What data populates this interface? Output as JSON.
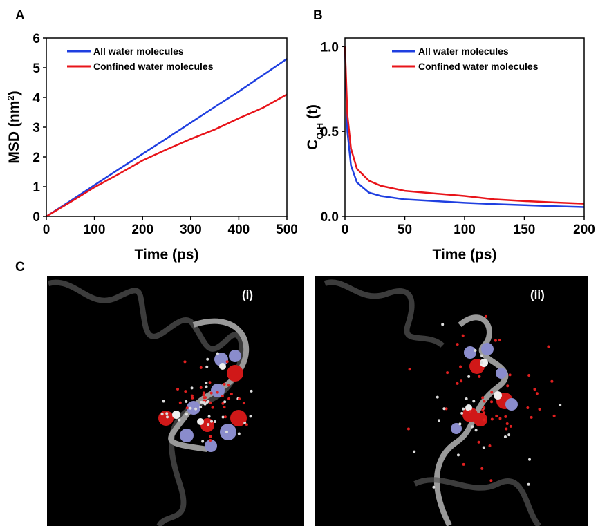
{
  "panel_labels": [
    "A",
    "B",
    "C"
  ],
  "chart_data": [
    {
      "type": "line",
      "x_label": "Time (ps)",
      "y_label": [
        "MSD (nm",
        "2",
        ")"
      ],
      "x": [
        0,
        50,
        100,
        150,
        200,
        250,
        300,
        350,
        400,
        450,
        500
      ],
      "series": [
        {
          "name": "All water molecules",
          "color": "#1f3fe0",
          "values": [
            0,
            0.52,
            1.05,
            1.58,
            2.1,
            2.62,
            3.15,
            3.68,
            4.2,
            4.75,
            5.3
          ]
        },
        {
          "name": "Confined water molecules",
          "color": "#e8141a",
          "values": [
            0,
            0.48,
            0.98,
            1.42,
            1.88,
            2.25,
            2.6,
            2.92,
            3.3,
            3.65,
            4.1
          ]
        }
      ],
      "xlim": [
        0,
        500
      ],
      "ylim": [
        0,
        6
      ],
      "xticks": [
        0,
        100,
        200,
        300,
        400,
        500
      ],
      "yticks": [
        0,
        1,
        2,
        3,
        4,
        5,
        6
      ],
      "legend": "upper left"
    },
    {
      "type": "line",
      "x_label": "Time (ps)",
      "y_label": [
        "C",
        "O-H",
        " (t)"
      ],
      "x": [
        0,
        2,
        5,
        10,
        20,
        30,
        50,
        75,
        100,
        125,
        150,
        175,
        200
      ],
      "series": [
        {
          "name": "All water molecules",
          "color": "#1f3fe0",
          "values": [
            1.0,
            0.5,
            0.3,
            0.2,
            0.14,
            0.12,
            0.1,
            0.09,
            0.08,
            0.072,
            0.066,
            0.06,
            0.055
          ]
        },
        {
          "name": "Confined water molecules",
          "color": "#e8141a",
          "values": [
            1.0,
            0.6,
            0.4,
            0.28,
            0.21,
            0.18,
            0.15,
            0.135,
            0.12,
            0.1,
            0.09,
            0.082,
            0.075
          ]
        }
      ],
      "xlim": [
        0,
        200
      ],
      "ylim": [
        0,
        1.05
      ],
      "xticks": [
        0,
        50,
        100,
        150,
        200
      ],
      "yticks": [
        {
          "value": 0,
          "label": "0.0"
        },
        {
          "value": 0.5,
          "label": "0.5"
        },
        {
          "value": 1,
          "label": "1.0"
        }
      ],
      "legend": "upper center"
    }
  ],
  "images": [
    {
      "label": "(i)"
    },
    {
      "label": "(ii)"
    }
  ]
}
